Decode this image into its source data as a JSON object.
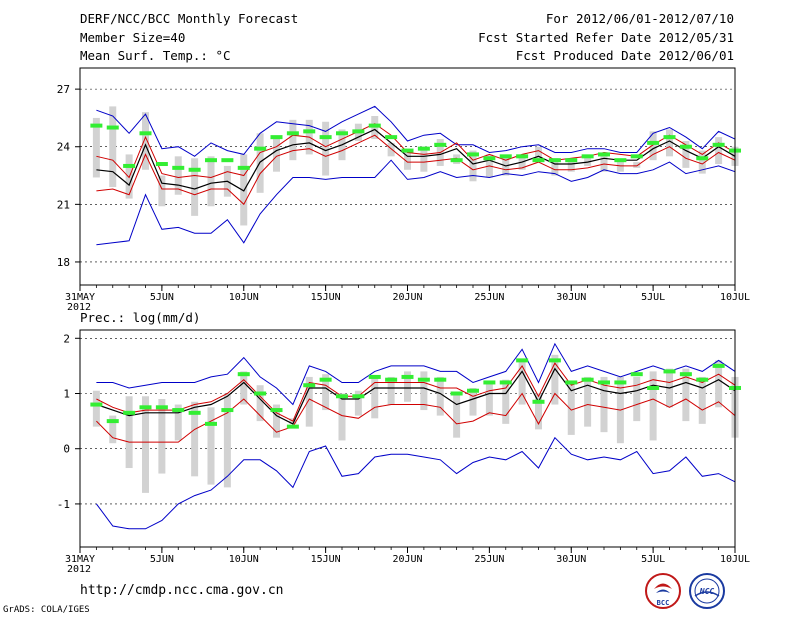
{
  "header": {
    "title": "DERF/NCC/BCC Monthly Forecast",
    "member_size": "Member Size=40",
    "variable": "Mean Surf. Temp.: °C",
    "period": "For 2012/06/01-2012/07/10",
    "started": "Fcst Started Refer Date 2012/05/31",
    "produced": "Fcst Produced Date 2012/06/01"
  },
  "footer": {
    "url": "http://cmdp.ncc.cma.gov.cn",
    "credit": "GrADS: COLA/IGES",
    "logo1_text": "BCC",
    "logo2_text": "NCC"
  },
  "colors": {
    "envelope": "#0000c8",
    "spread": "#d00000",
    "mean": "#000000",
    "bar": "#d2d2d2",
    "marker": "#33ee33"
  },
  "chart_data": [
    {
      "type": "line",
      "title": "Mean Surf. Temp.: °C",
      "ylim": [
        16.8,
        28.1
      ],
      "yticks": [
        18,
        21,
        24,
        27
      ],
      "xlim": [
        0,
        40
      ],
      "xticks": [
        {
          "x": 0,
          "label": "31MAY",
          "label2": "2012"
        },
        {
          "x": 5,
          "label": "5JUN"
        },
        {
          "x": 10,
          "label": "10JUN"
        },
        {
          "x": 15,
          "label": "15JUN"
        },
        {
          "x": 20,
          "label": "20JUN"
        },
        {
          "x": 25,
          "label": "25JUN"
        },
        {
          "x": 30,
          "label": "30JUN"
        },
        {
          "x": 35,
          "label": "5JUL"
        },
        {
          "x": 40,
          "label": "10JUL"
        }
      ],
      "x": [
        1,
        2,
        3,
        4,
        5,
        6,
        7,
        8,
        9,
        10,
        11,
        12,
        13,
        14,
        15,
        16,
        17,
        18,
        19,
        20,
        21,
        22,
        23,
        24,
        25,
        26,
        27,
        28,
        29,
        30,
        31,
        32,
        33,
        34,
        35,
        36,
        37,
        38,
        39,
        40
      ],
      "series": [
        {
          "name": "max",
          "values": [
            25.9,
            25.6,
            24.7,
            25.7,
            23.9,
            24.0,
            23.5,
            24.2,
            23.8,
            23.6,
            24.7,
            25.3,
            25.2,
            25.1,
            24.8,
            25.3,
            25.7,
            26.1,
            25.3,
            24.3,
            24.6,
            24.7,
            24.1,
            24.1,
            23.7,
            23.8,
            24.0,
            24.1,
            23.7,
            23.7,
            23.9,
            23.9,
            23.7,
            23.7,
            24.7,
            25.0,
            24.5,
            23.9,
            24.8,
            24.4
          ]
        },
        {
          "name": "upper",
          "values": [
            23.5,
            23.3,
            22.4,
            24.5,
            22.6,
            22.4,
            22.5,
            22.4,
            22.7,
            22.5,
            23.7,
            24.0,
            24.6,
            24.5,
            24.0,
            24.4,
            24.8,
            25.2,
            24.6,
            23.7,
            23.6,
            23.7,
            24.2,
            23.3,
            23.6,
            23.3,
            23.6,
            23.8,
            23.3,
            23.4,
            23.5,
            23.7,
            23.6,
            23.5,
            24.1,
            24.6,
            24.1,
            23.6,
            24.2,
            23.7
          ]
        },
        {
          "name": "mean",
          "values": [
            22.8,
            22.7,
            22.0,
            24.1,
            22.1,
            22.0,
            21.8,
            22.1,
            22.2,
            21.7,
            23.2,
            23.8,
            24.1,
            24.2,
            23.8,
            24.1,
            24.5,
            24.9,
            24.2,
            23.5,
            23.5,
            23.6,
            23.9,
            23.1,
            23.3,
            23.0,
            23.2,
            23.5,
            23.1,
            23.1,
            23.2,
            23.4,
            23.3,
            23.3,
            23.9,
            24.3,
            23.8,
            23.4,
            24.0,
            23.5
          ]
        },
        {
          "name": "lower",
          "values": [
            21.7,
            21.8,
            21.5,
            23.6,
            21.8,
            21.8,
            21.5,
            21.8,
            21.8,
            21.0,
            22.6,
            23.5,
            23.8,
            23.9,
            23.5,
            23.8,
            24.2,
            24.6,
            23.9,
            23.2,
            23.2,
            23.3,
            23.4,
            22.8,
            23.0,
            22.8,
            22.9,
            23.2,
            22.8,
            22.8,
            22.9,
            23.1,
            23.0,
            23.0,
            23.6,
            24.0,
            23.4,
            23.1,
            23.7,
            23.3
          ]
        },
        {
          "name": "min",
          "values": [
            18.9,
            19.0,
            19.1,
            21.5,
            19.7,
            19.8,
            19.5,
            19.5,
            20.2,
            19.0,
            20.5,
            21.5,
            22.4,
            22.4,
            22.3,
            22.4,
            22.4,
            22.4,
            23.3,
            22.3,
            22.4,
            22.7,
            22.4,
            22.5,
            22.4,
            22.6,
            22.5,
            22.7,
            22.6,
            22.2,
            22.4,
            22.8,
            22.6,
            22.6,
            22.8,
            23.2,
            22.6,
            22.8,
            23.0,
            22.7
          ]
        },
        {
          "name": "bar_high",
          "values": [
            25.5,
            26.1,
            23.6,
            25.8,
            22.5,
            23.5,
            23.4,
            23.5,
            23.0,
            23.6,
            24.7,
            24.5,
            25.4,
            25.4,
            25.3,
            24.9,
            25.2,
            25.6,
            24.2,
            23.7,
            24.0,
            24.4,
            23.6,
            23.8,
            23.6,
            23.5,
            23.6,
            24.0,
            23.4,
            23.3,
            23.4,
            23.7,
            23.3,
            23.2,
            24.8,
            24.9,
            24.3,
            23.8,
            24.5,
            24.0
          ]
        },
        {
          "name": "bar_low",
          "values": [
            22.4,
            21.9,
            21.3,
            22.8,
            20.9,
            21.5,
            20.4,
            20.9,
            21.4,
            19.9,
            21.6,
            22.7,
            23.3,
            23.6,
            22.5,
            23.3,
            24.3,
            24.4,
            23.5,
            22.8,
            22.7,
            23.0,
            23.1,
            22.2,
            22.4,
            22.5,
            22.8,
            23.2,
            22.5,
            22.7,
            23.0,
            22.7,
            22.7,
            22.9,
            23.3,
            23.5,
            22.9,
            22.6,
            23.1,
            23.0
          ]
        },
        {
          "name": "observed",
          "values": [
            25.1,
            25.0,
            23.0,
            24.7,
            23.1,
            22.9,
            22.8,
            23.3,
            23.3,
            22.9,
            23.9,
            24.5,
            24.7,
            24.8,
            24.5,
            24.7,
            24.8,
            25.1,
            24.5,
            23.8,
            23.9,
            24.1,
            23.3,
            23.6,
            23.4,
            23.5,
            23.5,
            23.3,
            23.3,
            23.3,
            23.5,
            23.6,
            23.3,
            23.5,
            24.2,
            24.5,
            24.0,
            23.4,
            24.1,
            23.8
          ]
        }
      ]
    },
    {
      "type": "line",
      "title": "Prec.: log(mm/d)",
      "ylim": [
        -1.78,
        2.15
      ],
      "yticks": [
        -1,
        0,
        1,
        2
      ],
      "xlim": [
        0,
        40
      ],
      "xticks": [
        {
          "x": 0,
          "label": "31MAY",
          "label2": "2012"
        },
        {
          "x": 5,
          "label": "5JUN"
        },
        {
          "x": 10,
          "label": "10JUN"
        },
        {
          "x": 15,
          "label": "15JUN"
        },
        {
          "x": 20,
          "label": "20JUN"
        },
        {
          "x": 25,
          "label": "25JUN"
        },
        {
          "x": 30,
          "label": "30JUN"
        },
        {
          "x": 35,
          "label": "5JUL"
        },
        {
          "x": 40,
          "label": "10JUL"
        }
      ],
      "x": [
        1,
        2,
        3,
        4,
        5,
        6,
        7,
        8,
        9,
        10,
        11,
        12,
        13,
        14,
        15,
        16,
        17,
        18,
        19,
        20,
        21,
        22,
        23,
        24,
        25,
        26,
        27,
        28,
        29,
        30,
        31,
        32,
        33,
        34,
        35,
        36,
        37,
        38,
        39,
        40
      ],
      "series": [
        {
          "name": "max",
          "values": [
            1.2,
            1.2,
            1.1,
            1.15,
            1.2,
            1.2,
            1.2,
            1.3,
            1.35,
            1.65,
            1.3,
            1.1,
            0.8,
            1.5,
            1.4,
            1.2,
            1.2,
            1.4,
            1.5,
            1.5,
            1.5,
            1.4,
            1.4,
            1.2,
            1.3,
            1.4,
            1.8,
            1.2,
            1.9,
            1.4,
            1.5,
            1.4,
            1.3,
            1.4,
            1.5,
            1.4,
            1.5,
            1.4,
            1.6,
            1.4
          ]
        },
        {
          "name": "upper",
          "values": [
            0.9,
            0.75,
            0.65,
            0.7,
            0.7,
            0.7,
            0.8,
            0.85,
            1.0,
            1.25,
            0.95,
            0.65,
            0.5,
            1.2,
            1.15,
            0.95,
            0.95,
            1.2,
            1.2,
            1.2,
            1.2,
            1.1,
            1.1,
            0.95,
            1.05,
            1.1,
            1.5,
            0.95,
            1.55,
            1.15,
            1.25,
            1.15,
            1.1,
            1.15,
            1.25,
            1.2,
            1.3,
            1.2,
            1.35,
            1.15
          ]
        },
        {
          "name": "mean",
          "values": [
            0.8,
            0.7,
            0.6,
            0.65,
            0.65,
            0.65,
            0.75,
            0.8,
            0.95,
            1.2,
            0.9,
            0.6,
            0.45,
            1.1,
            1.1,
            0.9,
            0.9,
            1.1,
            1.1,
            1.1,
            1.1,
            1.0,
            0.8,
            0.9,
            1.0,
            1.0,
            1.4,
            0.85,
            1.45,
            1.05,
            1.15,
            1.05,
            1.0,
            1.05,
            1.15,
            1.1,
            1.2,
            1.1,
            1.25,
            1.05
          ]
        },
        {
          "name": "lower",
          "values": [
            0.5,
            0.2,
            0.12,
            0.12,
            0.12,
            0.12,
            0.35,
            0.5,
            0.65,
            0.9,
            0.6,
            0.3,
            0.4,
            0.9,
            0.75,
            0.6,
            0.55,
            0.75,
            0.8,
            0.8,
            0.8,
            0.75,
            0.45,
            0.5,
            0.65,
            0.6,
            1.0,
            0.45,
            1.0,
            0.7,
            0.8,
            0.75,
            0.7,
            0.8,
            0.9,
            0.75,
            0.9,
            0.7,
            0.85,
            0.6
          ]
        },
        {
          "name": "min",
          "values": [
            -1.0,
            -1.4,
            -1.45,
            -1.45,
            -1.3,
            -1.0,
            -0.85,
            -0.75,
            -0.5,
            -0.2,
            -0.2,
            -0.4,
            -0.7,
            -0.05,
            0.05,
            -0.5,
            -0.45,
            -0.15,
            -0.1,
            -0.1,
            -0.15,
            -0.2,
            -0.45,
            -0.25,
            -0.15,
            -0.2,
            -0.05,
            -0.35,
            0.2,
            -0.1,
            -0.2,
            -0.15,
            -0.2,
            -0.05,
            -0.45,
            -0.4,
            -0.15,
            -0.5,
            -0.45,
            -0.6
          ]
        },
        {
          "name": "bar_high",
          "values": [
            1.05,
            0.6,
            0.95,
            0.95,
            0.9,
            0.8,
            0.85,
            0.75,
            1.0,
            1.4,
            1.15,
            0.8,
            0.55,
            1.3,
            1.35,
            1.0,
            1.05,
            1.3,
            1.3,
            1.4,
            1.4,
            1.3,
            1.0,
            1.1,
            1.2,
            1.25,
            1.6,
            1.0,
            1.7,
            1.2,
            1.3,
            1.3,
            1.3,
            1.3,
            1.4,
            1.45,
            1.45,
            1.3,
            1.6,
            1.3
          ]
        },
        {
          "name": "bar_low",
          "values": [
            0.4,
            0.1,
            -0.35,
            -0.8,
            -0.45,
            0.15,
            -0.5,
            -0.65,
            -0.7,
            0.8,
            0.5,
            0.2,
            0.45,
            0.4,
            0.7,
            0.15,
            0.6,
            0.55,
            0.8,
            0.85,
            0.7,
            0.6,
            0.2,
            0.6,
            0.6,
            0.45,
            0.8,
            0.35,
            0.8,
            0.25,
            0.4,
            0.3,
            0.1,
            0.5,
            0.15,
            0.75,
            0.5,
            0.45,
            0.75,
            0.2
          ]
        },
        {
          "name": "observed",
          "values": [
            0.8,
            0.5,
            0.65,
            0.75,
            0.75,
            0.7,
            0.65,
            0.45,
            0.7,
            1.35,
            1.0,
            0.7,
            0.4,
            1.15,
            1.25,
            0.95,
            0.95,
            1.3,
            1.25,
            1.3,
            1.25,
            1.25,
            1.0,
            1.05,
            1.2,
            1.2,
            1.6,
            0.85,
            1.6,
            1.2,
            1.25,
            1.2,
            1.2,
            1.35,
            1.1,
            1.4,
            1.35,
            1.25,
            1.5,
            1.1
          ]
        }
      ]
    }
  ]
}
